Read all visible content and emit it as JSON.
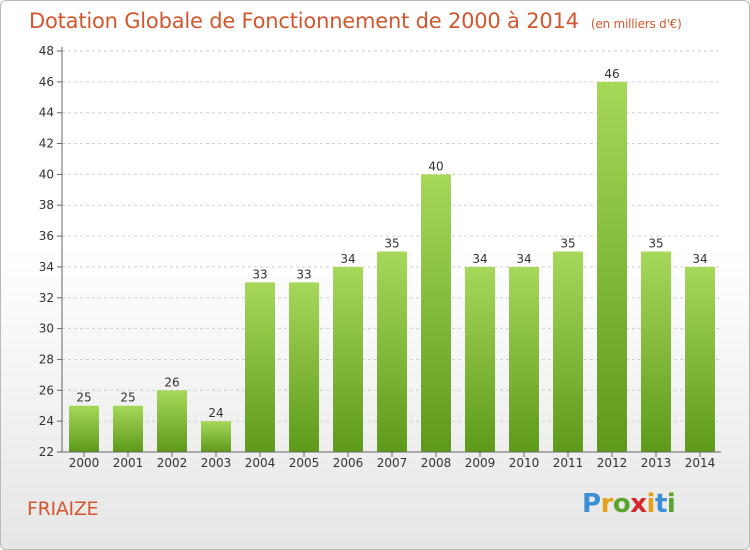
{
  "title": "Dotation Globale de Fonctionnement de 2000 à 2014",
  "subtitle": "(en milliers d'€)",
  "commune": "FRIAIZE",
  "brand": {
    "letters": [
      "P",
      "r",
      "o",
      "x",
      "i",
      "t",
      "i"
    ],
    "colors": [
      "#3b8fd6",
      "#e3a21a",
      "#5aa42e",
      "#d9262d",
      "#e3a21a",
      "#3b8fd6",
      "#5aa42e"
    ]
  },
  "colors": {
    "accent": "#d2572e",
    "bar_top": "#a6d85a",
    "bar_bottom": "#5e9a1a",
    "axis": "#666666",
    "grid": "#d0d0d0"
  },
  "chart_data": {
    "type": "bar",
    "categories": [
      "2000",
      "2001",
      "2002",
      "2003",
      "2004",
      "2005",
      "2006",
      "2007",
      "2008",
      "2009",
      "2010",
      "2011",
      "2012",
      "2013",
      "2014"
    ],
    "values": [
      25,
      25,
      26,
      24,
      33,
      33,
      34,
      35,
      40,
      34,
      34,
      35,
      46,
      35,
      34
    ],
    "ylim": [
      22,
      48
    ],
    "yticks": [
      22,
      24,
      26,
      28,
      30,
      32,
      34,
      36,
      38,
      40,
      42,
      44,
      46,
      48
    ],
    "grid": true,
    "data_labels": true
  }
}
